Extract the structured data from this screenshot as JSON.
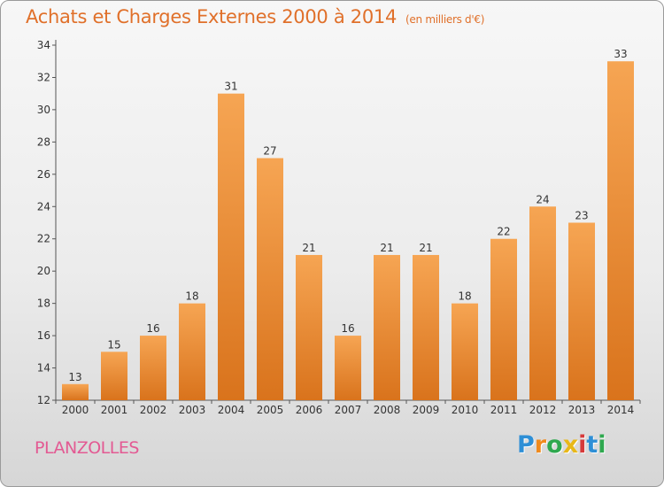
{
  "title": "Achats et Charges Externes 2000 à 2014",
  "unit": "(en milliers d'€)",
  "commune": "PLANZOLLES",
  "logo": {
    "letters": [
      "P",
      "r",
      "o",
      "x",
      "i",
      "t",
      "i"
    ],
    "colors": [
      "#2e8fd6",
      "#f08a1c",
      "#2fa84f",
      "#e8b818",
      "#d63a3a",
      "#2e8fd6",
      "#2fa84f"
    ]
  },
  "chart_data": {
    "type": "bar",
    "categories": [
      "2000",
      "2001",
      "2002",
      "2003",
      "2004",
      "2005",
      "2006",
      "2007",
      "2008",
      "2009",
      "2010",
      "2011",
      "2012",
      "2013",
      "2014"
    ],
    "values": [
      13,
      15,
      16,
      18,
      31,
      27,
      21,
      16,
      21,
      21,
      18,
      22,
      24,
      23,
      33
    ],
    "ylim": [
      12,
      34
    ],
    "yticks": [
      12,
      14,
      16,
      18,
      20,
      22,
      24,
      26,
      28,
      30,
      32,
      34
    ],
    "bar_color": "#ec8a2c",
    "grid": false
  }
}
